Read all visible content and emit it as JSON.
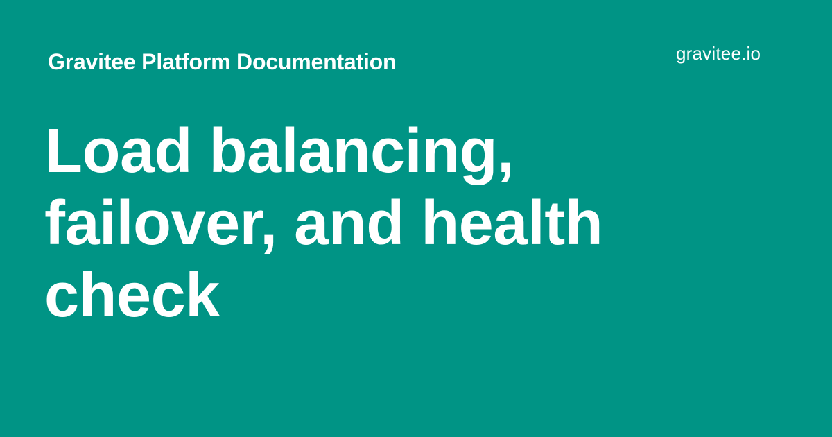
{
  "header": {
    "site_title": "Gravitee Platform Documentation"
  },
  "logo": {
    "name": "gravitee",
    "suffix": ".io"
  },
  "page": {
    "title_lines": [
      "Load balancing,",
      "failover, and health",
      "check"
    ]
  },
  "colors": {
    "background": "#009485",
    "text": "#ffffff"
  }
}
